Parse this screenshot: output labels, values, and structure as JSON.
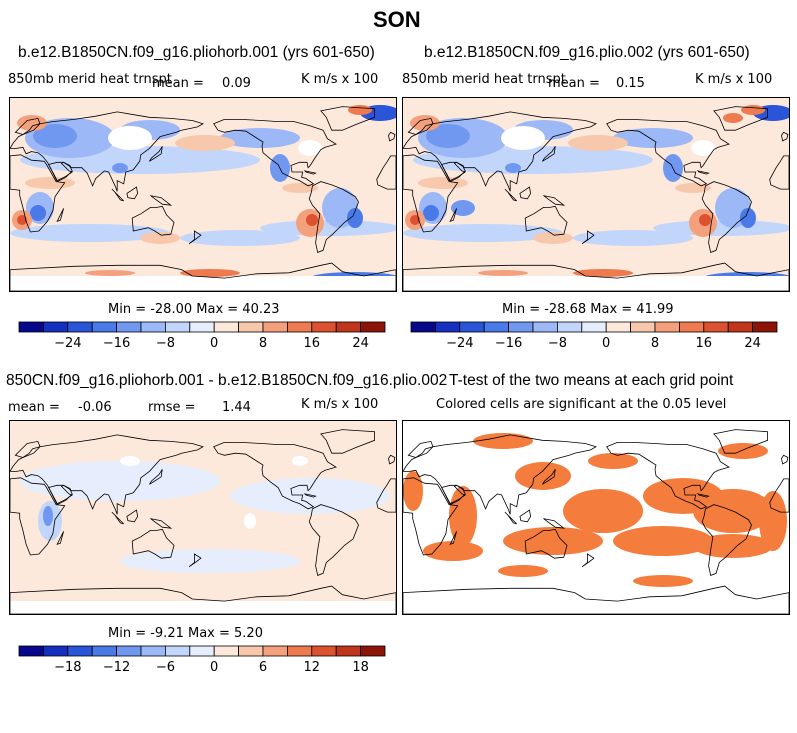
{
  "figure": {
    "title": "SON"
  },
  "panels": [
    {
      "title": "b.e12.B1850CN.f09_g16.pliohorb.001 (yrs 601-650)",
      "variable_label": "850mb merid heat trnspt",
      "mean_label": "mean =",
      "mean_value": "0.09",
      "units": "K m/s x 100",
      "minmax": "Min = -28.00 Max =  40.23"
    },
    {
      "title": "b.e12.B1850CN.f09_g16.plio.002 (yrs 601-650)",
      "variable_label": "850mb merid heat trnspt",
      "mean_label": "mean =",
      "mean_value": "0.15",
      "units": "K m/s x 100",
      "minmax": "Min = -28.68 Max =  41.99"
    },
    {
      "title": "850CN.f09_g16.pliohorb.001 - b.e12.B1850CN.f09_g16.plio.002",
      "mean_label": "mean =",
      "mean_value": "-0.06",
      "rmse_label": "rmse =",
      "rmse_value": "1.44",
      "units": "K m/s x 100",
      "minmax": "Min =  -9.21 Max =   5.20"
    },
    {
      "title": "T-test of the two means at each grid point",
      "subtitle": "Colored cells are significant at the 0.05 level",
      "fill_color": "#f47c3c"
    }
  ],
  "colorbars": {
    "main": {
      "colors": [
        "#08088c",
        "#1530c0",
        "#2a55d8",
        "#4a7ae8",
        "#7098f0",
        "#9cb8f6",
        "#c2d6fb",
        "#e6eefd",
        "#fde8dc",
        "#f8c8ac",
        "#f4a07c",
        "#ee7a50",
        "#dc5230",
        "#c0361c",
        "#8c1408"
      ],
      "labels": [
        "-24",
        "-16",
        "-8",
        "0",
        "8",
        "16",
        "24"
      ]
    },
    "diff": {
      "colors": [
        "#08088c",
        "#1530c0",
        "#2a55d8",
        "#4a7ae8",
        "#7098f0",
        "#9cb8f6",
        "#c2d6fb",
        "#e6eefd",
        "#fde8dc",
        "#f8c8ac",
        "#f4a07c",
        "#ee7a50",
        "#dc5230",
        "#c0361c",
        "#8c1408"
      ],
      "labels": [
        "-18",
        "-12",
        "-6",
        "0",
        "6",
        "12",
        "18"
      ]
    }
  },
  "chart_data": [
    {
      "type": "heatmap",
      "title": "b.e12.B1850CN.f09_g16.pliohorb.001 (yrs 601-650)",
      "variable": "850mb merid heat trnspt",
      "units": "K m/s x 100",
      "season": "SON",
      "mean": 0.09,
      "min": -28.0,
      "max": 40.23,
      "contour_levels": [
        -28,
        -24,
        -20,
        -16,
        -12,
        -8,
        -4,
        0,
        4,
        8,
        12,
        16,
        20,
        24,
        28
      ],
      "colorbar_tick_labels": [
        -24,
        -16,
        -8,
        0,
        8,
        16,
        24
      ]
    },
    {
      "type": "heatmap",
      "title": "b.e12.B1850CN.f09_g16.plio.002 (yrs 601-650)",
      "variable": "850mb merid heat trnspt",
      "units": "K m/s x 100",
      "season": "SON",
      "mean": 0.15,
      "min": -28.68,
      "max": 41.99,
      "contour_levels": [
        -28,
        -24,
        -20,
        -16,
        -12,
        -8,
        -4,
        0,
        4,
        8,
        12,
        16,
        20,
        24,
        28
      ],
      "colorbar_tick_labels": [
        -24,
        -16,
        -8,
        0,
        8,
        16,
        24
      ]
    },
    {
      "type": "heatmap",
      "title": "850CN.f09_g16.pliohorb.001 - b.e12.B1850CN.f09_g16.plio.002",
      "units": "K m/s x 100",
      "mean": -0.06,
      "rmse": 1.44,
      "min": -9.21,
      "max": 5.2,
      "contour_levels": [
        -21,
        -18,
        -15,
        -12,
        -9,
        -6,
        -3,
        0,
        3,
        6,
        9,
        12,
        15,
        18,
        21
      ],
      "colorbar_tick_labels": [
        -18,
        -12,
        -6,
        0,
        6,
        12,
        18
      ]
    },
    {
      "type": "heatmap",
      "title": "T-test of the two means at each grid point",
      "subtitle": "Colored cells are significant at the 0.05 level",
      "significance_level": 0.05
    }
  ]
}
